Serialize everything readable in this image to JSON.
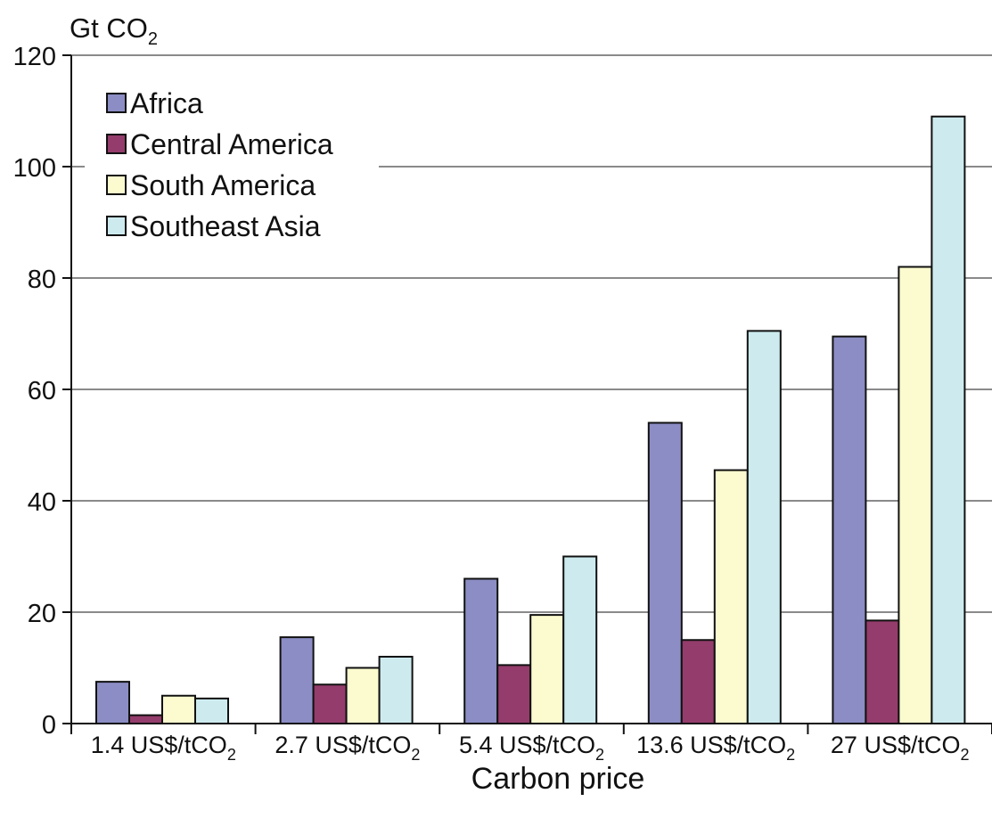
{
  "chart_data": {
    "type": "bar",
    "y_unit": "Gt CO",
    "y_unit_sub": "2",
    "xlabel": "Carbon price",
    "ylabel": "",
    "title": "",
    "ylim": [
      0,
      120
    ],
    "y_ticks": [
      0,
      20,
      40,
      60,
      80,
      100,
      120
    ],
    "grid": true,
    "legend_position": "top-left",
    "categories": [
      {
        "main": "1.4 US$/tCO",
        "sub": "2"
      },
      {
        "main": "2.7 US$/tCO",
        "sub": "2"
      },
      {
        "main": "5.4 US$/tCO",
        "sub": "2"
      },
      {
        "main": "13.6 US$/tCO",
        "sub": "2"
      },
      {
        "main": "27 US$/tCO",
        "sub": "2"
      }
    ],
    "series": [
      {
        "name": "Africa",
        "color": "#8b8dc4",
        "values": [
          7.5,
          15.5,
          26,
          54,
          69.5
        ]
      },
      {
        "name": "Central America",
        "color": "#943c6b",
        "values": [
          1.5,
          7,
          10.5,
          15,
          18.5
        ]
      },
      {
        "name": "South America",
        "color": "#fbfbcf",
        "values": [
          5,
          10,
          19.5,
          45.5,
          82
        ]
      },
      {
        "name": "Southeast Asia",
        "color": "#cdebef",
        "values": [
          4.5,
          12,
          30,
          70.5,
          109
        ]
      }
    ]
  }
}
